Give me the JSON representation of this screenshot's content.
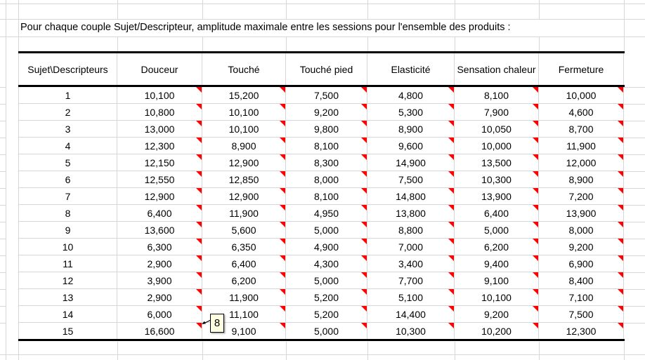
{
  "title": "Pour chaque couple Sujet/Descripteur, amplitude maximale entre les sessions pour l'ensemble des produits :",
  "table": {
    "header": [
      "Sujet\\Descripteurs",
      "Douceur",
      "Touché",
      "Touché pied",
      "Elasticité",
      "Sensation chaleur",
      "Fermeture"
    ],
    "rows": [
      [
        "1",
        "10,100",
        "15,200",
        "7,500",
        "4,800",
        "8,100",
        "10,000"
      ],
      [
        "2",
        "10,800",
        "10,100",
        "9,200",
        "5,300",
        "7,900",
        "4,600"
      ],
      [
        "3",
        "13,000",
        "10,100",
        "9,800",
        "8,900",
        "10,050",
        "8,700"
      ],
      [
        "4",
        "12,300",
        "8,900",
        "8,100",
        "9,600",
        "10,000",
        "11,900"
      ],
      [
        "5",
        "12,150",
        "12,900",
        "8,300",
        "14,900",
        "13,500",
        "12,000"
      ],
      [
        "6",
        "12,550",
        "12,850",
        "8,000",
        "7,500",
        "10,300",
        "8,900"
      ],
      [
        "7",
        "12,900",
        "12,900",
        "8,100",
        "14,800",
        "13,900",
        "7,200"
      ],
      [
        "8",
        "6,400",
        "11,900",
        "4,950",
        "13,800",
        "6,400",
        "13,900"
      ],
      [
        "9",
        "13,600",
        "5,600",
        "5,000",
        "8,800",
        "5,000",
        "8,000"
      ],
      [
        "10",
        "6,300",
        "6,350",
        "4,900",
        "7,000",
        "6,200",
        "9,200"
      ],
      [
        "11",
        "2,900",
        "6,400",
        "4,300",
        "3,400",
        "9,400",
        "6,900"
      ],
      [
        "12",
        "3,900",
        "6,200",
        "5,000",
        "7,700",
        "9,100",
        "8,400"
      ],
      [
        "13",
        "2,900",
        "11,900",
        "5,200",
        "5,100",
        "10,100",
        "7,100"
      ],
      [
        "14",
        "6,000",
        "11,100",
        "5,200",
        "14,400",
        "9,200",
        "7,500"
      ],
      [
        "15",
        "16,600",
        "9,100",
        "5,000",
        "10,300",
        "10,200",
        "12,300"
      ]
    ]
  },
  "comment_popup": {
    "text": "8"
  },
  "icons": {
    "cell_comment_indicator": "red-corner-triangle"
  },
  "colors": {
    "text": "#000000",
    "gridline": "#d6d6d6",
    "table_border": "#000000",
    "comment_indicator": "#ff0000",
    "comment_fill": "#ffffe1",
    "background": "#ffffff"
  }
}
